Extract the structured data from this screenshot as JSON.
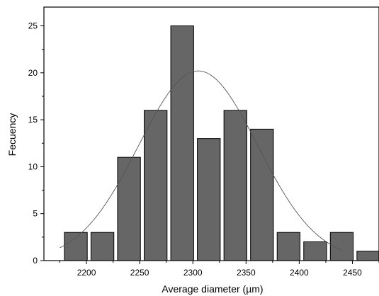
{
  "chart_data": {
    "type": "bar",
    "title": "",
    "xlabel": "Average diameter (µm)",
    "ylabel": "Fecuency",
    "xlim": [
      2160,
      2475
    ],
    "ylim": [
      0,
      27
    ],
    "x_ticks": [
      2200,
      2250,
      2300,
      2350,
      2400,
      2450
    ],
    "y_ticks": [
      0,
      5,
      10,
      15,
      20,
      25
    ],
    "bar_width": 21.5,
    "categories": [
      2190,
      2215,
      2240,
      2265,
      2290,
      2315,
      2340,
      2365,
      2390,
      2415,
      2440,
      2465
    ],
    "values": [
      3,
      3,
      11,
      16,
      25,
      13,
      16,
      14,
      3,
      2,
      3,
      1
    ],
    "fit_curve": {
      "type": "normal",
      "mean": 2305,
      "std": 56,
      "peak": 20.2,
      "x_range": [
        2175,
        2440
      ]
    },
    "bar_color": "#666666",
    "grid": false,
    "legend": "none"
  }
}
